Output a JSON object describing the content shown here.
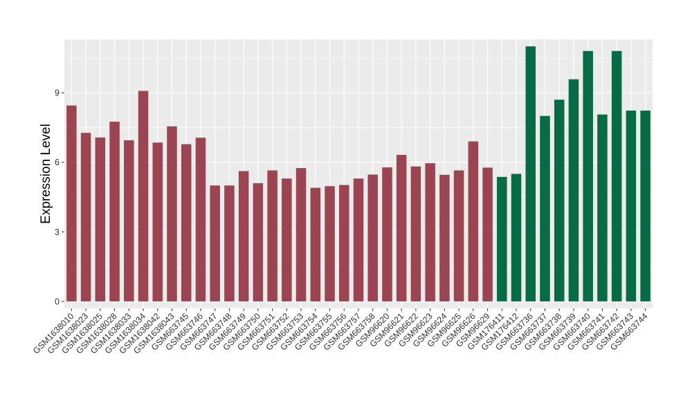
{
  "chart_data": {
    "type": "bar",
    "title": "",
    "xlabel": "",
    "ylabel": "Expression Level",
    "ylim": [
      -0.3,
      11.3
    ],
    "yticks": [
      0,
      3,
      6,
      9
    ],
    "grid": true,
    "legend": "none",
    "colors": {
      "group1": "#9b4452",
      "group2": "#076b47",
      "panel_bg": "#ebebeb",
      "grid": "#ffffff"
    },
    "categories": [
      "GSM1638010",
      "GSM1638023",
      "GSM1638025",
      "GSM1638028",
      "GSM1638033",
      "GSM1638034",
      "GSM1638042",
      "GSM1638043",
      "GSM663745",
      "GSM663746",
      "GSM663747",
      "GSM663748",
      "GSM663749",
      "GSM663750",
      "GSM663751",
      "GSM663752",
      "GSM663753",
      "GSM663754",
      "GSM663755",
      "GSM663756",
      "GSM663757",
      "GSM663758",
      "GSM96620",
      "GSM96621",
      "GSM96622",
      "GSM96623",
      "GSM96624",
      "GSM96625",
      "GSM96626",
      "GSM96629",
      "GSM176411",
      "GSM176412",
      "GSM663736",
      "GSM663737",
      "GSM663738",
      "GSM663739",
      "GSM663740",
      "GSM663741",
      "GSM663742",
      "GSM663743",
      "GSM663744"
    ],
    "values": [
      8.45,
      7.27,
      7.07,
      7.75,
      6.95,
      9.08,
      6.85,
      7.55,
      6.78,
      7.06,
      5.0,
      5.0,
      5.62,
      5.1,
      5.65,
      5.3,
      5.75,
      4.9,
      4.97,
      5.02,
      5.3,
      5.47,
      5.78,
      6.32,
      5.82,
      5.96,
      5.46,
      5.65,
      6.9,
      5.77,
      5.37,
      5.5,
      11.0,
      8.0,
      8.7,
      9.58,
      10.8,
      8.06,
      10.8,
      8.23,
      8.23
    ],
    "groups": [
      0,
      0,
      0,
      0,
      0,
      0,
      0,
      0,
      0,
      0,
      0,
      0,
      0,
      0,
      0,
      0,
      0,
      0,
      0,
      0,
      0,
      0,
      0,
      0,
      0,
      0,
      0,
      0,
      0,
      0,
      1,
      1,
      1,
      1,
      1,
      1,
      1,
      1,
      1,
      1,
      1
    ]
  }
}
